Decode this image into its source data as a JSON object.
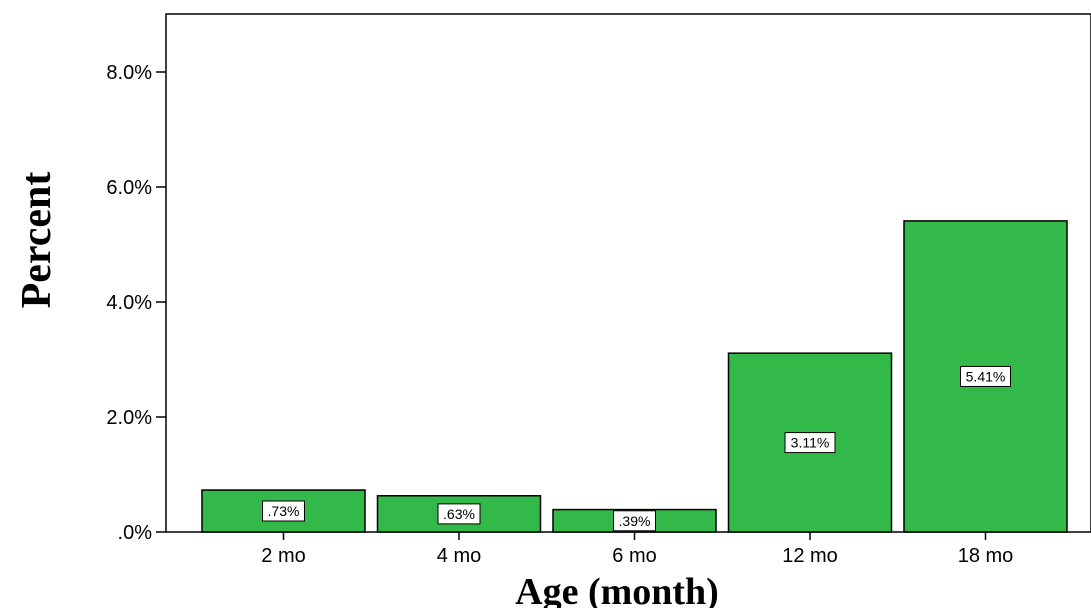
{
  "chart_data": {
    "type": "bar",
    "categories": [
      "2 mo",
      "4 mo",
      "6 mo",
      "12 mo",
      "18 mo"
    ],
    "values": [
      0.73,
      0.63,
      0.39,
      3.11,
      5.41
    ],
    "data_labels": [
      ".73%",
      ".63%",
      ".39%",
      "3.11%",
      "5.41%"
    ],
    "xlabel": "Age (month)",
    "ylabel": "Percent",
    "ylim": [
      0,
      8.5
    ],
    "yticks": [
      0,
      2,
      4,
      6,
      8
    ],
    "ytick_labels": [
      ".0%",
      "2.0%",
      "4.0%",
      "6.0%",
      "8.0%"
    ],
    "bar_color": "#33b84a",
    "grid": false
  }
}
